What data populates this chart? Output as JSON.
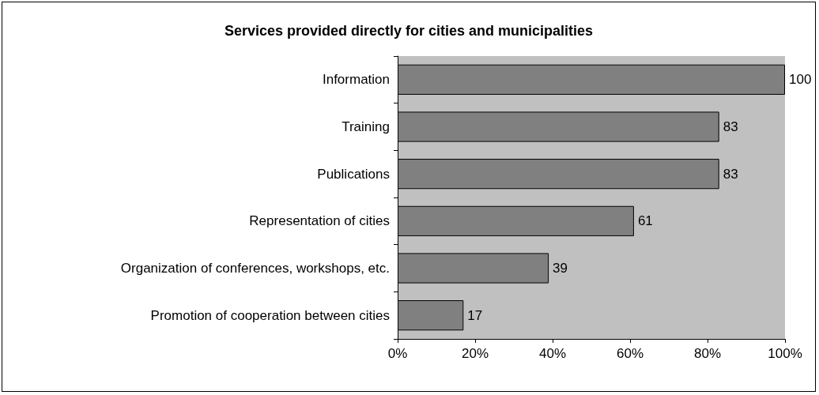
{
  "chart_data": {
    "type": "bar",
    "orientation": "horizontal",
    "title": "Services provided directly for cities and municipalities",
    "categories": [
      "Information",
      "Training",
      "Publications",
      "Representation of cities",
      "Organization of conferences, workshops, etc.",
      "Promotion of cooperation between cities"
    ],
    "values": [
      100,
      83,
      83,
      61,
      39,
      17
    ],
    "color": "#808080",
    "xlim": [
      0,
      100
    ],
    "xticks": [
      {
        "value": 0,
        "label": "0%"
      },
      {
        "value": 20,
        "label": "20%"
      },
      {
        "value": 40,
        "label": "40%"
      },
      {
        "value": 60,
        "label": "60%"
      },
      {
        "value": 80,
        "label": "80%"
      },
      {
        "value": 100,
        "label": "100%"
      }
    ],
    "data_labels": true,
    "grid": false
  }
}
